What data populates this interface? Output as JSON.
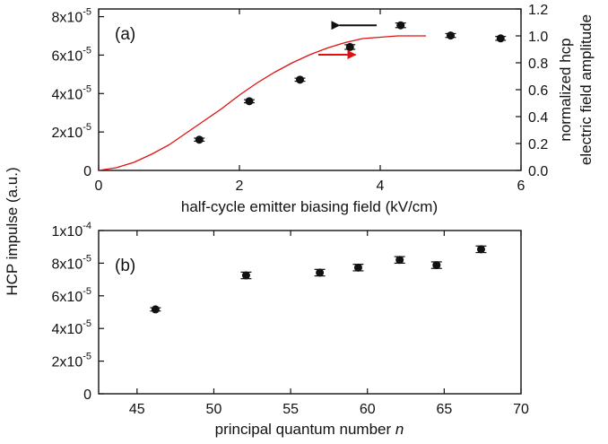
{
  "chart_data": [
    {
      "type": "scatter",
      "panel_label": "(a)",
      "xlabel": "half-cycle emitter biasing field (kV/cm)",
      "ylabel_left": "",
      "ylabel_right": "normalized hcp electric field amplitude",
      "ylabel_right_lines": [
        "normalized hcp",
        "electric field amplitude"
      ],
      "xlim": [
        0,
        6
      ],
      "ylim": [
        0,
        8.4e-05
      ],
      "ylim_right": [
        0,
        1.2
      ],
      "x_ticks": [
        0,
        2,
        4,
        6
      ],
      "y_ticks": [
        {
          "value": 0,
          "base": "0",
          "exp": ""
        },
        {
          "value": 2e-05,
          "base": "2x10",
          "exp": "-5"
        },
        {
          "value": 4e-05,
          "base": "4x10",
          "exp": "-5"
        },
        {
          "value": 6e-05,
          "base": "6x10",
          "exp": "-5"
        },
        {
          "value": 8e-05,
          "base": "8x10",
          "exp": "-5"
        }
      ],
      "y_ticks_right": [
        "0.0",
        "0.2",
        "0.4",
        "0.6",
        "0.8",
        "1.0",
        "1.2"
      ],
      "points": [
        {
          "x": 1.43,
          "y": 1.6e-05,
          "err": 8e-07
        },
        {
          "x": 2.14,
          "y": 3.6e-05,
          "err": 8e-07
        },
        {
          "x": 2.86,
          "y": 4.72e-05,
          "err": 8e-07
        },
        {
          "x": 3.57,
          "y": 6.42e-05,
          "err": 1.2e-06
        },
        {
          "x": 4.29,
          "y": 7.55e-05,
          "err": 1.2e-06
        },
        {
          "x": 5.0,
          "y": 7.02e-05,
          "err": 1e-06
        },
        {
          "x": 5.71,
          "y": 6.87e-05,
          "err": 1e-06
        }
      ],
      "curve": {
        "axis": "right",
        "color": "#e01010",
        "x": [
          0,
          0.25,
          0.5,
          0.75,
          1.0,
          1.25,
          1.5,
          1.75,
          2.0,
          2.25,
          2.5,
          2.75,
          3.0,
          3.25,
          3.5,
          3.75,
          4.0,
          4.25,
          4.5,
          4.65
        ],
        "y": [
          0.0,
          0.02,
          0.06,
          0.12,
          0.19,
          0.28,
          0.37,
          0.46,
          0.56,
          0.65,
          0.73,
          0.8,
          0.86,
          0.91,
          0.95,
          0.98,
          0.99,
          1.0,
          1.0,
          1.0
        ]
      },
      "arrows": [
        {
          "points_to": "left",
          "color": "#111111",
          "x_from": 3.95,
          "x_to": 3.42,
          "y": 7.55e-05
        },
        {
          "points_to": "right",
          "color": "#e01010",
          "x_from": 3.12,
          "x_to": 3.65,
          "y_right": 0.86
        }
      ]
    },
    {
      "type": "scatter",
      "panel_label": "(b)",
      "xlabel": "principal quantum number",
      "xlabel_italic": "n",
      "ylabel": "HCP impulse (a.u.)",
      "xlim": [
        42.5,
        70
      ],
      "ylim": [
        0,
        0.0001
      ],
      "x_ticks": [
        45,
        50,
        55,
        60,
        65,
        70
      ],
      "y_ticks": [
        {
          "value": 0,
          "base": "0",
          "exp": ""
        },
        {
          "value": 2e-05,
          "base": "2x10",
          "exp": "-5"
        },
        {
          "value": 4e-05,
          "base": "4x10",
          "exp": "-5"
        },
        {
          "value": 6e-05,
          "base": "6x10",
          "exp": "-5"
        },
        {
          "value": 8e-05,
          "base": "8x10",
          "exp": "-5"
        },
        {
          "value": 0.0001,
          "base": "1x10",
          "exp": "-4"
        }
      ],
      "points": [
        {
          "x": 46.2,
          "y": 5.17e-05,
          "err": 1e-06
        },
        {
          "x": 52.1,
          "y": 7.25e-05,
          "err": 2e-06
        },
        {
          "x": 56.9,
          "y": 7.42e-05,
          "err": 2e-06
        },
        {
          "x": 59.4,
          "y": 7.73e-05,
          "err": 2e-06
        },
        {
          "x": 62.1,
          "y": 8.2e-05,
          "err": 2e-06
        },
        {
          "x": 64.5,
          "y": 7.88e-05,
          "err": 2e-06
        },
        {
          "x": 67.4,
          "y": 8.85e-05,
          "err": 2e-06
        }
      ]
    }
  ]
}
